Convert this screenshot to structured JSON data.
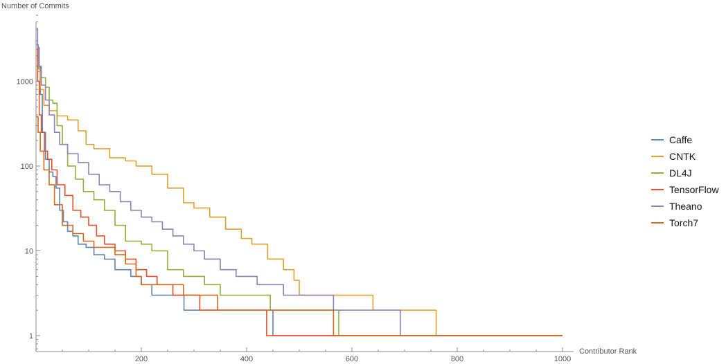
{
  "chart_data": {
    "type": "line",
    "title": "",
    "xlabel": "Contributor Rank",
    "ylabel": "Number of Commits",
    "xlim": [
      0,
      1000
    ],
    "ylim": [
      0.65,
      6000
    ],
    "yscale": "log",
    "x_ticks": [
      200,
      400,
      600,
      800,
      1000
    ],
    "y_ticks": [
      1,
      10,
      100,
      1000
    ],
    "x_tick_labels": [
      "200",
      "400",
      "600",
      "800",
      "1000"
    ],
    "y_tick_labels": [
      "1",
      "10",
      "100",
      "1000"
    ],
    "grid": false,
    "legend_position": "right",
    "series": [
      {
        "name": "Caffe",
        "color": "#5b84b1",
        "points": [
          [
            1,
            2700
          ],
          [
            4,
            1500
          ],
          [
            8,
            700
          ],
          [
            12,
            250
          ],
          [
            18,
            120
          ],
          [
            25,
            85
          ],
          [
            32,
            75
          ],
          [
            38,
            55
          ],
          [
            45,
            30
          ],
          [
            52,
            22
          ],
          [
            60,
            17
          ],
          [
            70,
            15
          ],
          [
            80,
            12
          ],
          [
            95,
            11
          ],
          [
            110,
            9
          ],
          [
            130,
            8
          ],
          [
            150,
            6
          ],
          [
            180,
            5
          ],
          [
            200,
            4
          ],
          [
            220,
            3
          ],
          [
            280,
            3
          ],
          [
            281,
            2
          ],
          [
            445,
            2
          ],
          [
            450,
            1
          ],
          [
            1000,
            1
          ]
        ]
      },
      {
        "name": "CNTK",
        "color": "#e0a030",
        "points": [
          [
            1,
            2000
          ],
          [
            3,
            1300
          ],
          [
            8,
            800
          ],
          [
            15,
            520
          ],
          [
            25,
            450
          ],
          [
            40,
            390
          ],
          [
            60,
            350
          ],
          [
            80,
            260
          ],
          [
            95,
            180
          ],
          [
            110,
            160
          ],
          [
            140,
            125
          ],
          [
            170,
            115
          ],
          [
            190,
            100
          ],
          [
            220,
            80
          ],
          [
            250,
            55
          ],
          [
            280,
            37
          ],
          [
            300,
            32
          ],
          [
            330,
            25
          ],
          [
            360,
            18
          ],
          [
            390,
            14
          ],
          [
            410,
            12
          ],
          [
            440,
            8
          ],
          [
            470,
            6
          ],
          [
            490,
            4.5
          ],
          [
            500,
            3
          ],
          [
            630,
            3
          ],
          [
            640,
            2
          ],
          [
            755,
            2
          ],
          [
            760,
            1
          ],
          [
            1000,
            1
          ]
        ]
      },
      {
        "name": "DL4J",
        "color": "#8fb03a",
        "points": [
          [
            1,
            1500
          ],
          [
            5,
            1400
          ],
          [
            10,
            1100
          ],
          [
            18,
            850
          ],
          [
            25,
            600
          ],
          [
            32,
            550
          ],
          [
            40,
            300
          ],
          [
            50,
            180
          ],
          [
            60,
            100
          ],
          [
            75,
            70
          ],
          [
            90,
            50
          ],
          [
            110,
            40
          ],
          [
            130,
            30
          ],
          [
            150,
            20
          ],
          [
            170,
            13
          ],
          [
            200,
            12
          ],
          [
            220,
            10
          ],
          [
            250,
            6
          ],
          [
            280,
            5
          ],
          [
            320,
            4
          ],
          [
            350,
            3
          ],
          [
            440,
            3
          ],
          [
            445,
            2
          ],
          [
            570,
            2
          ],
          [
            575,
            1
          ],
          [
            1000,
            1
          ]
        ]
      },
      {
        "name": "TensorFlow",
        "color": "#e8502a",
        "points": [
          [
            1,
            2400
          ],
          [
            3,
            1000
          ],
          [
            6,
            400
          ],
          [
            10,
            250
          ],
          [
            16,
            150
          ],
          [
            22,
            120
          ],
          [
            30,
            90
          ],
          [
            40,
            60
          ],
          [
            55,
            45
          ],
          [
            70,
            30
          ],
          [
            85,
            25
          ],
          [
            100,
            20
          ],
          [
            115,
            15
          ],
          [
            130,
            12
          ],
          [
            150,
            10
          ],
          [
            170,
            8
          ],
          [
            190,
            6
          ],
          [
            210,
            5
          ],
          [
            230,
            4
          ],
          [
            260,
            3
          ],
          [
            310,
            3
          ],
          [
            311,
            2
          ],
          [
            435,
            2
          ],
          [
            438,
            1
          ],
          [
            1000,
            1
          ]
        ]
      },
      {
        "name": "Theano",
        "color": "#8b82b8",
        "points": [
          [
            1,
            4200
          ],
          [
            3,
            2500
          ],
          [
            6,
            1500
          ],
          [
            10,
            900
          ],
          [
            18,
            600
          ],
          [
            25,
            400
          ],
          [
            35,
            250
          ],
          [
            45,
            180
          ],
          [
            60,
            140
          ],
          [
            80,
            110
          ],
          [
            100,
            80
          ],
          [
            120,
            60
          ],
          [
            140,
            50
          ],
          [
            160,
            38
          ],
          [
            180,
            30
          ],
          [
            200,
            25
          ],
          [
            220,
            22
          ],
          [
            240,
            18
          ],
          [
            260,
            15
          ],
          [
            280,
            12
          ],
          [
            300,
            10
          ],
          [
            320,
            8
          ],
          [
            350,
            6
          ],
          [
            380,
            5
          ],
          [
            420,
            4
          ],
          [
            470,
            3
          ],
          [
            560,
            3
          ],
          [
            565,
            2
          ],
          [
            690,
            2
          ],
          [
            692,
            1
          ],
          [
            1000,
            1
          ]
        ]
      },
      {
        "name": "Torch7",
        "color": "#d2691e",
        "points": [
          [
            1,
            380
          ],
          [
            4,
            250
          ],
          [
            8,
            150
          ],
          [
            15,
            90
          ],
          [
            25,
            60
          ],
          [
            35,
            35
          ],
          [
            50,
            20
          ],
          [
            70,
            16
          ],
          [
            90,
            13
          ],
          [
            110,
            11
          ],
          [
            130,
            11
          ],
          [
            150,
            9
          ],
          [
            170,
            7
          ],
          [
            190,
            5
          ],
          [
            200,
            4
          ],
          [
            270,
            4
          ],
          [
            280,
            3
          ],
          [
            340,
            3
          ],
          [
            345,
            2
          ],
          [
            560,
            2
          ],
          [
            565,
            1
          ],
          [
            1000,
            1
          ]
        ]
      }
    ]
  }
}
